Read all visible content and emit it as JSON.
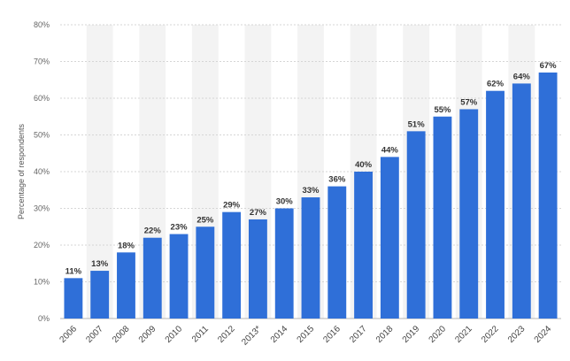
{
  "colors": {
    "bar": "#2f6fd8",
    "grid": "#d6d6d6",
    "band": "#f3f3f3",
    "axis": "#b5b5b5"
  },
  "chart_data": {
    "type": "bar",
    "title": "",
    "xlabel": "",
    "ylabel": "Percentage of respondents",
    "ylim": [
      0,
      80
    ],
    "yticks": [
      0,
      10,
      20,
      30,
      40,
      50,
      60,
      70,
      80
    ],
    "ytick_labels": [
      "0%",
      "10%",
      "20%",
      "30%",
      "40%",
      "50%",
      "60%",
      "70%",
      "80%"
    ],
    "categories": [
      "2006",
      "2007",
      "2008",
      "2009",
      "2010",
      "2011",
      "2012",
      "2013*",
      "2014",
      "2015",
      "2016",
      "2017",
      "2018",
      "2019",
      "2020",
      "2021",
      "2022",
      "2023",
      "2024"
    ],
    "values": [
      11,
      13,
      18,
      22,
      23,
      25,
      29,
      27,
      30,
      33,
      36,
      40,
      44,
      51,
      55,
      57,
      62,
      64,
      67
    ],
    "data_labels": [
      "11%",
      "13%",
      "18%",
      "22%",
      "23%",
      "25%",
      "29%",
      "27%",
      "30%",
      "33%",
      "36%",
      "40%",
      "44%",
      "51%",
      "55%",
      "57%",
      "62%",
      "64%",
      "67%"
    ],
    "grid": true,
    "legend": "none"
  }
}
